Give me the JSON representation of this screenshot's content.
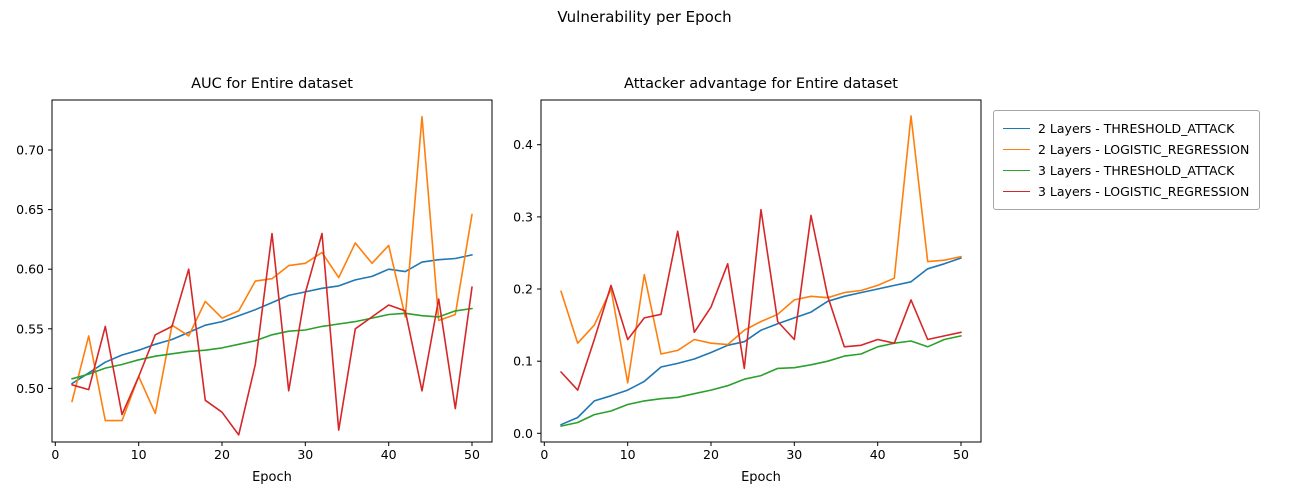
{
  "figure": {
    "title": "Vulnerability per Epoch"
  },
  "chart_data": [
    {
      "type": "line",
      "title": "AUC for Entire dataset",
      "xlabel": "Epoch",
      "grid": false,
      "xlim": [
        -0.4,
        52.4
      ],
      "ylim": [
        0.455,
        0.742
      ],
      "xticks": [
        0,
        10,
        20,
        30,
        40,
        50
      ],
      "yticks": [
        0.5,
        0.55,
        0.6,
        0.65,
        0.7
      ],
      "ytick_labels": [
        "0.50",
        "0.55",
        "0.60",
        "0.65",
        "0.70"
      ],
      "x": [
        2,
        4,
        6,
        8,
        10,
        12,
        14,
        16,
        18,
        20,
        22,
        24,
        26,
        28,
        30,
        32,
        34,
        36,
        38,
        40,
        42,
        44,
        46,
        48,
        50
      ],
      "series": [
        {
          "name": "2 Layers - THRESHOLD_ATTACK",
          "color": "#1f77b4",
          "values": [
            0.504,
            0.513,
            0.522,
            0.528,
            0.532,
            0.537,
            0.541,
            0.547,
            0.553,
            0.556,
            0.561,
            0.566,
            0.572,
            0.578,
            0.581,
            0.584,
            0.586,
            0.591,
            0.594,
            0.6,
            0.598,
            0.606,
            0.608,
            0.609,
            0.612
          ]
        },
        {
          "name": "2 Layers - LOGISTIC_REGRESSION",
          "color": "#ff7f0e",
          "values": [
            0.489,
            0.544,
            0.473,
            0.473,
            0.51,
            0.479,
            0.553,
            0.544,
            0.573,
            0.559,
            0.565,
            0.59,
            0.592,
            0.603,
            0.605,
            0.614,
            0.593,
            0.622,
            0.605,
            0.62,
            0.56,
            0.728,
            0.557,
            0.562,
            0.646
          ]
        },
        {
          "name": "3 Layers - THRESHOLD_ATTACK",
          "color": "#2ca02c",
          "values": [
            0.508,
            0.512,
            0.517,
            0.52,
            0.524,
            0.527,
            0.529,
            0.531,
            0.532,
            0.534,
            0.537,
            0.54,
            0.545,
            0.548,
            0.549,
            0.552,
            0.554,
            0.556,
            0.559,
            0.562,
            0.563,
            0.561,
            0.56,
            0.565,
            0.567
          ]
        },
        {
          "name": "3 Layers - LOGISTIC_REGRESSION",
          "color": "#d62728",
          "values": [
            0.503,
            0.499,
            0.552,
            0.478,
            0.51,
            0.545,
            0.552,
            0.6,
            0.49,
            0.48,
            0.461,
            0.52,
            0.63,
            0.498,
            0.58,
            0.63,
            0.465,
            0.55,
            0.56,
            0.57,
            0.565,
            0.498,
            0.575,
            0.483,
            0.585
          ]
        }
      ]
    },
    {
      "type": "line",
      "title": "Attacker advantage for Entire dataset",
      "xlabel": "Epoch",
      "grid": false,
      "xlim": [
        -0.4,
        52.4
      ],
      "ylim": [
        -0.012,
        0.462
      ],
      "xticks": [
        0,
        10,
        20,
        30,
        40,
        50
      ],
      "yticks": [
        0.0,
        0.1,
        0.2,
        0.3,
        0.4
      ],
      "ytick_labels": [
        "0.0",
        "0.1",
        "0.2",
        "0.3",
        "0.4"
      ],
      "x": [
        2,
        4,
        6,
        8,
        10,
        12,
        14,
        16,
        18,
        20,
        22,
        24,
        26,
        28,
        30,
        32,
        34,
        36,
        38,
        40,
        42,
        44,
        46,
        48,
        50
      ],
      "series": [
        {
          "name": "2 Layers - THRESHOLD_ATTACK",
          "color": "#1f77b4",
          "values": [
            0.012,
            0.022,
            0.045,
            0.052,
            0.06,
            0.072,
            0.092,
            0.097,
            0.103,
            0.112,
            0.122,
            0.127,
            0.143,
            0.152,
            0.16,
            0.168,
            0.183,
            0.19,
            0.195,
            0.2,
            0.205,
            0.21,
            0.228,
            0.235,
            0.243
          ]
        },
        {
          "name": "2 Layers - LOGISTIC_REGRESSION",
          "color": "#ff7f0e",
          "values": [
            0.197,
            0.125,
            0.15,
            0.2,
            0.07,
            0.22,
            0.11,
            0.115,
            0.13,
            0.125,
            0.123,
            0.143,
            0.155,
            0.165,
            0.185,
            0.19,
            0.188,
            0.195,
            0.198,
            0.205,
            0.215,
            0.44,
            0.238,
            0.24,
            0.245
          ]
        },
        {
          "name": "3 Layers - THRESHOLD_ATTACK",
          "color": "#2ca02c",
          "values": [
            0.01,
            0.015,
            0.026,
            0.031,
            0.04,
            0.045,
            0.048,
            0.05,
            0.055,
            0.06,
            0.066,
            0.075,
            0.08,
            0.09,
            0.091,
            0.095,
            0.1,
            0.107,
            0.11,
            0.12,
            0.125,
            0.128,
            0.12,
            0.13,
            0.135
          ]
        },
        {
          "name": "3 Layers - LOGISTIC_REGRESSION",
          "color": "#d62728",
          "values": [
            0.085,
            0.06,
            0.13,
            0.205,
            0.13,
            0.16,
            0.165,
            0.28,
            0.14,
            0.175,
            0.235,
            0.09,
            0.31,
            0.155,
            0.13,
            0.302,
            0.19,
            0.12,
            0.122,
            0.13,
            0.125,
            0.185,
            0.13,
            0.135,
            0.14
          ]
        }
      ]
    }
  ],
  "legend": {
    "position": "upper right, outside axes",
    "entries": [
      {
        "label": "2 Layers - THRESHOLD_ATTACK",
        "color": "#1f77b4"
      },
      {
        "label": "2 Layers - LOGISTIC_REGRESSION",
        "color": "#ff7f0e"
      },
      {
        "label": "3 Layers - THRESHOLD_ATTACK",
        "color": "#2ca02c"
      },
      {
        "label": "3 Layers - LOGISTIC_REGRESSION",
        "color": "#d62728"
      }
    ]
  }
}
